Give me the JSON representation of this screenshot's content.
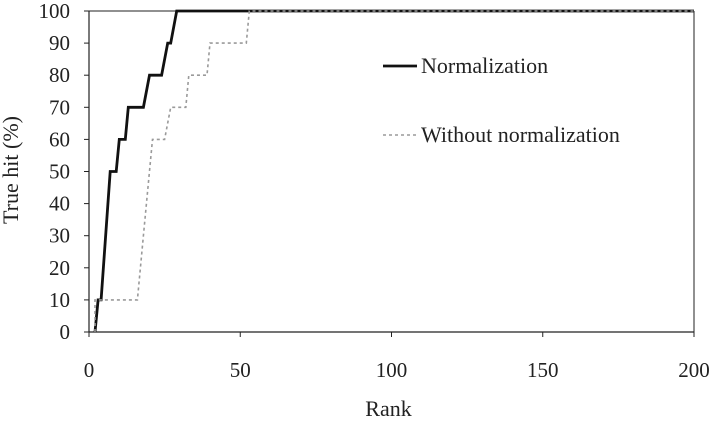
{
  "chart_data": {
    "type": "line",
    "title": "",
    "xlabel": "Rank",
    "ylabel": "True hit (%)",
    "xlim": [
      0,
      200
    ],
    "ylim": [
      0,
      100
    ],
    "x_ticks": [
      0,
      50,
      100,
      150,
      200
    ],
    "y_ticks": [
      0,
      10,
      20,
      30,
      40,
      50,
      60,
      70,
      80,
      90,
      100
    ],
    "grid": false,
    "legend_position": "right",
    "series": [
      {
        "name": "Normalization",
        "color": "#111111",
        "style": "solid",
        "points": [
          [
            2,
            0
          ],
          [
            3,
            10
          ],
          [
            4,
            10
          ],
          [
            7,
            50
          ],
          [
            9,
            50
          ],
          [
            10,
            60
          ],
          [
            12,
            60
          ],
          [
            13,
            70
          ],
          [
            18,
            70
          ],
          [
            20,
            80
          ],
          [
            24,
            80
          ],
          [
            26,
            90
          ],
          [
            27,
            90
          ],
          [
            29,
            100
          ],
          [
            200,
            100
          ]
        ]
      },
      {
        "name": "Without normalization",
        "color": "#9a9a9a",
        "style": "dotted",
        "points": [
          [
            2,
            0
          ],
          [
            2,
            10
          ],
          [
            16,
            10
          ],
          [
            18,
            30
          ],
          [
            21,
            60
          ],
          [
            25,
            60
          ],
          [
            27,
            70
          ],
          [
            32,
            70
          ],
          [
            33,
            80
          ],
          [
            39,
            80
          ],
          [
            40,
            90
          ],
          [
            52,
            90
          ],
          [
            53,
            100
          ],
          [
            200,
            100
          ]
        ]
      }
    ]
  }
}
